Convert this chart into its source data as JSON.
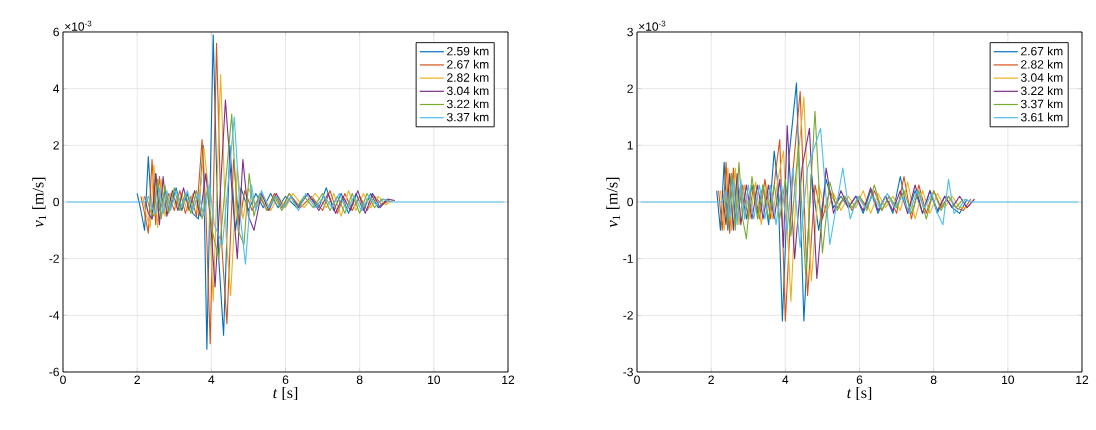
{
  "chart_data": [
    {
      "type": "line",
      "xlabel": "*t* [s]",
      "ylabel": "*v*$_{1}$ [m/s]",
      "annotations": [
        "×10$^{-3}$"
      ],
      "xlim": [
        0,
        12
      ],
      "xticks": [
        0,
        2,
        4,
        6,
        8,
        10,
        12
      ],
      "ylim": [
        -6,
        6
      ],
      "yticks": [
        -6,
        -4,
        -2,
        0,
        2,
        4,
        6
      ],
      "grid": true,
      "legend": "top right",
      "marker": "none",
      "line_style": "solid",
      "series": [
        {
          "name": "2.59 km",
          "color": "#0072bd",
          "x": [
            2.0,
            2.1,
            2.2,
            2.3,
            2.4,
            2.5,
            2.6,
            2.75,
            2.9,
            3.05,
            3.2,
            3.35,
            3.5,
            3.65,
            3.78,
            3.88,
            4.05,
            4.2,
            4.33,
            4.5,
            4.65,
            4.8,
            5.0,
            5.2,
            5.4,
            5.6,
            5.8,
            6.0,
            6.3,
            6.6,
            6.9,
            7.1,
            7.3,
            7.5,
            7.7,
            7.9,
            8.1,
            8.3,
            8.5,
            8.7
          ],
          "values": [
            0.3,
            -0.3,
            -1.0,
            1.6,
            -0.6,
            1.0,
            -0.3,
            0.4,
            -0.2,
            0.5,
            -0.3,
            0.3,
            -0.4,
            -0.6,
            2.0,
            -5.2,
            5.9,
            -2.0,
            -4.7,
            2.0,
            -1.0,
            0.5,
            -0.3,
            0.3,
            -0.2,
            0.3,
            -0.2,
            0.2,
            -0.2,
            0.3,
            -0.2,
            0.5,
            -0.3,
            0.3,
            -0.4,
            0.3,
            -0.3,
            0.3,
            -0.2,
            0.05
          ]
        },
        {
          "name": "2.67 km",
          "color": "#d95319",
          "x": [
            2.1,
            2.2,
            2.3,
            2.4,
            2.5,
            2.6,
            2.7,
            2.85,
            3.0,
            3.15,
            3.3,
            3.45,
            3.6,
            3.75,
            3.85,
            3.97,
            4.14,
            4.28,
            4.42,
            4.6,
            4.75,
            4.9,
            5.1,
            5.3,
            5.5,
            5.7,
            5.9,
            6.1,
            6.4,
            6.7,
            7.0,
            7.2,
            7.4,
            7.6,
            7.8,
            8.0,
            8.2,
            8.4,
            8.6,
            8.8
          ],
          "values": [
            0.2,
            -0.4,
            -1.1,
            1.5,
            -0.8,
            0.9,
            -0.4,
            0.3,
            -0.3,
            0.4,
            -0.4,
            0.2,
            -0.5,
            2.2,
            -0.2,
            -5.0,
            5.6,
            -1.5,
            -4.3,
            1.5,
            -0.8,
            0.4,
            -0.3,
            0.2,
            -0.3,
            0.3,
            -0.2,
            0.3,
            -0.2,
            0.2,
            -0.3,
            0.4,
            -0.4,
            0.3,
            -0.3,
            0.2,
            -0.3,
            0.2,
            -0.1,
            0.05
          ]
        },
        {
          "name": "2.82 km",
          "color": "#edb120",
          "x": [
            2.15,
            2.25,
            2.35,
            2.45,
            2.55,
            2.65,
            2.75,
            2.9,
            3.05,
            3.2,
            3.35,
            3.5,
            3.65,
            3.8,
            3.92,
            4.05,
            4.25,
            4.4,
            4.52,
            4.7,
            4.85,
            5.0,
            5.2,
            5.4,
            5.6,
            5.8,
            6.0,
            6.2,
            6.5,
            6.8,
            7.1,
            7.3,
            7.5,
            7.7,
            7.9,
            8.1,
            8.3,
            8.5,
            8.7,
            8.9
          ],
          "values": [
            0.2,
            -0.5,
            -0.9,
            1.3,
            -0.9,
            0.8,
            -0.5,
            0.3,
            -0.2,
            0.3,
            -0.3,
            0.3,
            -0.4,
            1.9,
            0.5,
            -3.5,
            4.5,
            -1.2,
            -3.3,
            1.2,
            -0.6,
            0.5,
            -0.2,
            0.2,
            -0.3,
            0.2,
            -0.2,
            0.3,
            -0.2,
            0.3,
            -0.2,
            0.3,
            -0.5,
            0.4,
            -0.3,
            0.3,
            -0.2,
            0.2,
            -0.1,
            0.05
          ]
        },
        {
          "name": "3.04 km",
          "color": "#7e2f8e",
          "x": [
            2.2,
            2.3,
            2.4,
            2.5,
            2.6,
            2.7,
            2.8,
            2.95,
            3.1,
            3.25,
            3.4,
            3.55,
            3.7,
            3.85,
            3.97,
            4.1,
            4.38,
            4.55,
            4.7,
            4.85,
            5.0,
            5.15,
            5.35,
            5.55,
            5.75,
            5.95,
            6.15,
            6.35,
            6.6,
            6.9,
            7.15,
            7.35,
            7.55,
            7.75,
            7.95,
            8.15,
            8.35,
            8.55,
            8.75,
            8.95
          ],
          "values": [
            0.2,
            -0.4,
            -0.6,
            1.0,
            -0.8,
            0.9,
            -0.5,
            0.4,
            -0.3,
            0.5,
            -0.3,
            0.4,
            -0.5,
            1.0,
            -0.5,
            -3.0,
            3.6,
            0.5,
            -2.0,
            1.5,
            -0.5,
            -1.0,
            0.3,
            -0.3,
            0.3,
            -0.2,
            0.2,
            -0.2,
            0.3,
            -0.3,
            0.3,
            -0.4,
            0.2,
            -0.3,
            0.4,
            -0.4,
            0.3,
            -0.2,
            0.1,
            0.05
          ]
        },
        {
          "name": "3.22 km",
          "color": "#77ac30",
          "x": [
            2.25,
            2.35,
            2.45,
            2.55,
            2.65,
            2.75,
            2.85,
            3.0,
            3.15,
            3.3,
            3.45,
            3.6,
            3.75,
            3.9,
            4.02,
            4.2,
            4.55,
            4.72,
            4.88,
            5.02,
            5.15,
            5.3,
            5.5,
            5.7,
            5.9,
            6.1,
            6.3,
            6.5,
            6.75,
            7.0,
            7.2,
            7.4,
            7.6,
            7.8,
            8.0,
            8.2,
            8.4,
            8.6,
            8.8
          ],
          "values": [
            0.2,
            -0.3,
            -0.5,
            0.8,
            -0.6,
            0.6,
            -0.4,
            0.5,
            -0.3,
            0.3,
            -0.4,
            0.4,
            -0.6,
            0.5,
            -1.0,
            -2.0,
            3.1,
            -1.0,
            -1.5,
            1.0,
            -0.5,
            0.3,
            -0.3,
            0.2,
            -0.3,
            0.3,
            -0.2,
            0.2,
            -0.2,
            0.3,
            -0.3,
            0.2,
            -0.4,
            0.3,
            -0.4,
            0.3,
            -0.2,
            0.1,
            0.05
          ]
        },
        {
          "name": "3.37 km",
          "color": "#4dbeee",
          "x": [
            0.1,
            2.2,
            2.3,
            2.4,
            2.5,
            2.6,
            2.7,
            2.8,
            2.9,
            3.05,
            3.2,
            3.35,
            3.5,
            3.65,
            3.8,
            3.95,
            4.08,
            4.3,
            4.62,
            4.78,
            4.92,
            5.08,
            5.2,
            5.35,
            5.55,
            5.75,
            5.95,
            6.15,
            6.35,
            6.55,
            6.8,
            7.05,
            7.25,
            7.45,
            7.65,
            7.85,
            8.05,
            8.25,
            8.45,
            8.65,
            8.85,
            9.05,
            9.6,
            11.4,
            11.9
          ],
          "values": [
            0,
            0,
            0.2,
            -0.2,
            -0.4,
            0.5,
            -0.4,
            0.4,
            -0.3,
            0.4,
            -0.2,
            0.4,
            -0.3,
            0.3,
            -0.5,
            0.6,
            -0.8,
            -1.5,
            3.0,
            -0.5,
            -2.2,
            0.6,
            -0.3,
            0.4,
            -0.2,
            0.2,
            -0.2,
            0.2,
            -0.3,
            0.3,
            -0.2,
            0.2,
            -0.2,
            0.3,
            -0.3,
            0.2,
            -0.3,
            0.2,
            -0.1,
            0.1,
            0,
            0,
            0,
            0,
            0
          ]
        }
      ]
    },
    {
      "type": "line",
      "xlabel": "*t* [s]",
      "ylabel": "*v*$_{1}$ [m/s]",
      "annotations": [
        "×10$^{-3}$"
      ],
      "xlim": [
        0,
        12
      ],
      "xticks": [
        0,
        2,
        4,
        6,
        8,
        10,
        12
      ],
      "ylim": [
        -3,
        3
      ],
      "yticks": [
        -3,
        -2,
        -1,
        0,
        1,
        2,
        3
      ],
      "grid": true,
      "legend": "top right",
      "marker": "none",
      "line_style": "solid",
      "series": [
        {
          "name": "2.67 km",
          "color": "#0072bd",
          "x": [
            2.15,
            2.25,
            2.35,
            2.45,
            2.55,
            2.65,
            2.8,
            2.95,
            3.1,
            3.25,
            3.4,
            3.55,
            3.7,
            3.8,
            3.92,
            4.1,
            4.3,
            4.5,
            4.7,
            4.9,
            5.1,
            5.3,
            5.5,
            5.7,
            5.9,
            6.1,
            6.3,
            6.5,
            6.7,
            6.9,
            7.1,
            7.3,
            7.5,
            7.7,
            7.9,
            8.1,
            8.3,
            8.5,
            8.7,
            8.9
          ],
          "values": [
            0.2,
            -0.5,
            0.7,
            -0.5,
            0.5,
            -0.3,
            0.3,
            -0.3,
            0.3,
            -0.2,
            0.3,
            -0.4,
            0.9,
            0.3,
            -2.1,
            0.8,
            2.1,
            -2.1,
            0.5,
            -0.5,
            0.4,
            -0.1,
            0.1,
            -0.1,
            0.1,
            -0.2,
            0.2,
            -0.2,
            0.1,
            -0.2,
            0.45,
            -0.2,
            0.2,
            -0.2,
            0.2,
            -0.2,
            0.1,
            -0.1,
            -0.2,
            0.05
          ]
        },
        {
          "name": "2.82 km",
          "color": "#d95319",
          "x": [
            2.2,
            2.3,
            2.4,
            2.5,
            2.6,
            2.7,
            2.85,
            3.0,
            3.15,
            3.3,
            3.45,
            3.6,
            3.75,
            3.85,
            4.0,
            4.2,
            4.4,
            4.6,
            4.8,
            5.0,
            5.2,
            5.4,
            5.6,
            5.8,
            6.0,
            6.2,
            6.4,
            6.6,
            6.8,
            7.0,
            7.2,
            7.4,
            7.6,
            7.8,
            8.0,
            8.2,
            8.4,
            8.6,
            8.8,
            9.0
          ],
          "values": [
            0.2,
            -0.5,
            0.7,
            -0.55,
            0.6,
            -0.3,
            0.3,
            -0.3,
            0.3,
            -0.3,
            0.4,
            -0.3,
            0.6,
            1.1,
            -2.1,
            0.5,
            1.95,
            -1.65,
            0.3,
            -0.3,
            0.2,
            -0.1,
            0.1,
            -0.15,
            0.1,
            -0.1,
            0.2,
            -0.15,
            0.1,
            -0.2,
            0.45,
            -0.3,
            0.3,
            -0.2,
            0.2,
            -0.1,
            0.1,
            -0.1,
            -0.15,
            0.05
          ]
        },
        {
          "name": "3.04 km",
          "color": "#edb120",
          "x": [
            2.25,
            2.35,
            2.45,
            2.55,
            2.65,
            2.75,
            2.9,
            3.05,
            3.2,
            3.35,
            3.5,
            3.65,
            3.8,
            3.95,
            4.15,
            4.32,
            4.5,
            4.7,
            4.9,
            5.1,
            5.3,
            5.5,
            5.7,
            5.9,
            6.1,
            6.3,
            6.5,
            6.7,
            6.9,
            7.1,
            7.3,
            7.5,
            7.7,
            7.9,
            8.1,
            8.3,
            8.5,
            8.7,
            8.9,
            9.1
          ],
          "values": [
            0.2,
            -0.5,
            0.6,
            -0.5,
            0.6,
            -0.4,
            0.3,
            -0.3,
            0.35,
            -0.4,
            0.3,
            -0.3,
            0.4,
            0.9,
            -1.75,
            0.6,
            1.85,
            -1.4,
            0.3,
            -0.2,
            0.15,
            -0.15,
            0.1,
            -0.1,
            0.2,
            -0.2,
            0.15,
            -0.1,
            0.1,
            -0.15,
            0.35,
            -0.3,
            0.2,
            -0.2,
            0.15,
            -0.1,
            0.1,
            -0.1,
            -0.1,
            0.05
          ]
        },
        {
          "name": "3.22 km",
          "color": "#7e2f8e",
          "x": [
            2.3,
            2.4,
            2.5,
            2.6,
            2.7,
            2.8,
            2.95,
            3.1,
            3.25,
            3.4,
            3.55,
            3.7,
            3.85,
            3.95,
            4.05,
            4.25,
            4.45,
            4.65,
            4.85,
            5.1,
            5.3,
            5.5,
            5.7,
            5.9,
            6.1,
            6.3,
            6.5,
            6.7,
            6.9,
            7.1,
            7.3,
            7.5,
            7.7,
            7.9,
            8.1,
            8.3,
            8.5,
            8.7,
            8.9,
            9.1
          ],
          "values": [
            0.2,
            -0.4,
            0.5,
            -0.5,
            0.5,
            -0.4,
            0.3,
            -0.3,
            0.3,
            -0.3,
            0.3,
            -0.3,
            0.4,
            -0.8,
            1.35,
            -1.0,
            0.6,
            1.3,
            -1.35,
            0.6,
            -0.2,
            0.2,
            -0.1,
            0.1,
            -0.15,
            0.25,
            -0.15,
            0.1,
            -0.15,
            0.2,
            -0.2,
            0.3,
            -0.2,
            0.2,
            -0.15,
            0.1,
            -0.1,
            0.1,
            -0.1,
            0.05
          ]
        },
        {
          "name": "3.37 km",
          "color": "#77ac30",
          "x": [
            2.35,
            2.45,
            2.55,
            2.65,
            2.75,
            2.85,
            2.95,
            3.1,
            3.25,
            3.4,
            3.55,
            3.7,
            3.85,
            4.0,
            4.15,
            4.35,
            4.55,
            4.8,
            5.0,
            5.2,
            5.4,
            5.6,
            5.8,
            6.0,
            6.2,
            6.4,
            6.6,
            6.8,
            7.0,
            7.2,
            7.4,
            7.6,
            7.8,
            8.0,
            8.2,
            8.4,
            8.6,
            8.8
          ],
          "values": [
            0.2,
            -0.4,
            0.5,
            -0.5,
            0.7,
            -0.3,
            -0.65,
            0.45,
            -0.3,
            0.3,
            -0.3,
            0.3,
            -0.3,
            0.4,
            -0.6,
            1.0,
            -1.3,
            1.6,
            -0.9,
            0.35,
            -0.15,
            0.1,
            -0.1,
            0.1,
            -0.15,
            0.3,
            -0.15,
            0.1,
            -0.1,
            0.2,
            -0.2,
            0.2,
            -0.3,
            0.2,
            -0.15,
            0.1,
            -0.1,
            0.05
          ]
        },
        {
          "name": "3.61 km",
          "color": "#4dbeee",
          "x": [
            0.1,
            2.3,
            2.4,
            2.5,
            2.6,
            2.7,
            2.8,
            2.9,
            3.0,
            3.15,
            3.3,
            3.45,
            3.6,
            3.75,
            3.9,
            4.05,
            4.2,
            4.4,
            4.6,
            4.95,
            5.2,
            5.55,
            5.75,
            5.95,
            6.15,
            6.35,
            6.55,
            6.75,
            6.95,
            7.15,
            7.35,
            7.55,
            7.75,
            7.95,
            8.1,
            8.25,
            8.4,
            8.55,
            8.7,
            8.85,
            9.0,
            9.2,
            9.7,
            11.6,
            11.9
          ],
          "values": [
            0,
            0,
            0.2,
            -0.3,
            0.4,
            -0.4,
            0.4,
            -0.3,
            0.3,
            -0.3,
            0.3,
            -0.3,
            0.3,
            -0.4,
            0.3,
            -0.5,
            0.6,
            -0.8,
            0.6,
            1.3,
            -0.75,
            0.6,
            -0.3,
            0.1,
            -0.1,
            0.1,
            -0.1,
            0.15,
            -0.1,
            0.1,
            -0.2,
            0.2,
            -0.1,
            0.15,
            -0.2,
            -0.4,
            0.4,
            -0.2,
            -0.1,
            0.05,
            0,
            0,
            0,
            0,
            0
          ]
        }
      ]
    }
  ]
}
